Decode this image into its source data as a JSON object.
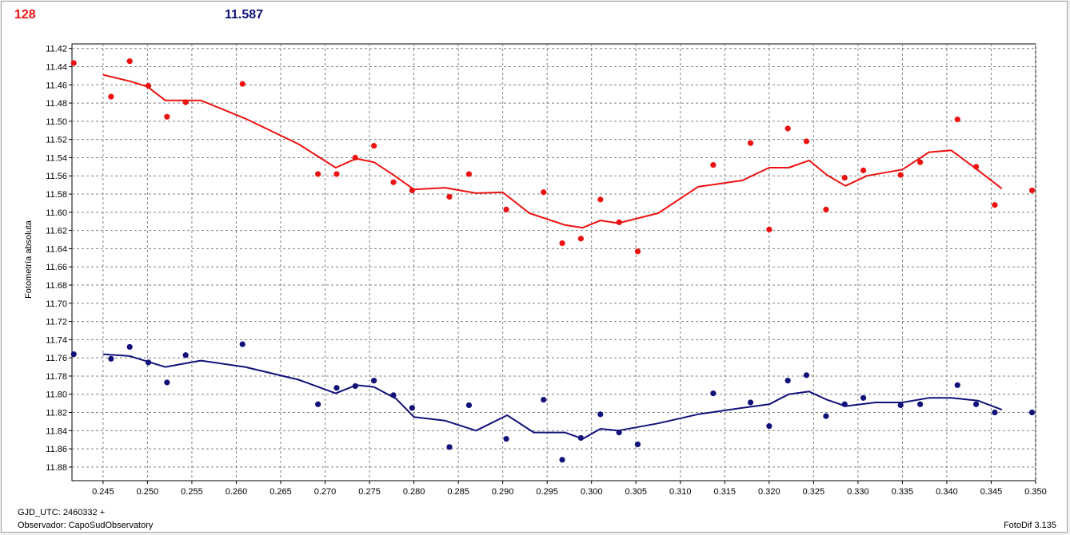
{
  "header": {
    "left_value": "128",
    "right_value": "11.587"
  },
  "footer": {
    "gjd_label": "GJD_UTC: 2460332 +",
    "observer_label": "Observador: CapoSudObservatory",
    "software_label": "FotoDif 3.135"
  },
  "colors": {
    "series_red": "#ee1111",
    "series_blue": "#11117a",
    "grid": "#808080"
  },
  "chart_data": {
    "type": "scatter",
    "ylabel": "Fotometría absoluta",
    "xlim": [
      0.2415,
      0.35
    ],
    "ylim": [
      11.415,
      11.895
    ],
    "y_inverted": true,
    "grid": true,
    "x_ticks": [
      "0.245",
      "0.250",
      "0.255",
      "0.260",
      "0.265",
      "0.270",
      "0.275",
      "0.280",
      "0.285",
      "0.290",
      "0.295",
      "0.300",
      "0.305",
      "0.310",
      "0.315",
      "0.320",
      "0.325",
      "0.330",
      "0.335",
      "0.340",
      "0.345",
      "0.350"
    ],
    "y_ticks": [
      "11.42",
      "11.44",
      "11.46",
      "11.48",
      "11.50",
      "11.52",
      "11.54",
      "11.56",
      "11.58",
      "11.60",
      "11.62",
      "11.64",
      "11.66",
      "11.68",
      "11.70",
      "11.72",
      "11.74",
      "11.76",
      "11.78",
      "11.80",
      "11.82",
      "11.84",
      "11.86",
      "11.88"
    ],
    "series": [
      {
        "color": "#ee1111",
        "points": [
          [
            0.2417,
            11.436
          ],
          [
            0.2459,
            11.473
          ],
          [
            0.248,
            11.434
          ],
          [
            0.2501,
            11.461
          ],
          [
            0.2522,
            11.495
          ],
          [
            0.2543,
            11.479
          ],
          [
            0.2607,
            11.459
          ],
          [
            0.2692,
            11.558
          ],
          [
            0.2713,
            11.558
          ],
          [
            0.2734,
            11.54
          ],
          [
            0.2755,
            11.527
          ],
          [
            0.2777,
            11.567
          ],
          [
            0.2798,
            11.576
          ],
          [
            0.284,
            11.583
          ],
          [
            0.2862,
            11.558
          ],
          [
            0.2904,
            11.597
          ],
          [
            0.2946,
            11.578
          ],
          [
            0.2967,
            11.634
          ],
          [
            0.2988,
            11.629
          ],
          [
            0.301,
            11.586
          ],
          [
            0.3031,
            11.611
          ],
          [
            0.3052,
            11.643
          ],
          [
            0.3137,
            11.548
          ],
          [
            0.3179,
            11.524
          ],
          [
            0.32,
            11.619
          ],
          [
            0.3221,
            11.508
          ],
          [
            0.3242,
            11.522
          ],
          [
            0.3264,
            11.597
          ],
          [
            0.3285,
            11.562
          ],
          [
            0.3306,
            11.554
          ],
          [
            0.3348,
            11.559
          ],
          [
            0.337,
            11.545
          ],
          [
            0.3412,
            11.498
          ],
          [
            0.3433,
            11.55
          ],
          [
            0.3454,
            11.592
          ],
          [
            0.3496,
            11.576
          ]
        ],
        "trend": [
          [
            0.245,
            11.449
          ],
          [
            0.248,
            11.456
          ],
          [
            0.25,
            11.462
          ],
          [
            0.252,
            11.477
          ],
          [
            0.256,
            11.477
          ],
          [
            0.261,
            11.497
          ],
          [
            0.267,
            11.525
          ],
          [
            0.2712,
            11.551
          ],
          [
            0.2735,
            11.541
          ],
          [
            0.2755,
            11.545
          ],
          [
            0.2777,
            11.559
          ],
          [
            0.28,
            11.575
          ],
          [
            0.2835,
            11.573
          ],
          [
            0.287,
            11.579
          ],
          [
            0.29,
            11.578
          ],
          [
            0.293,
            11.601
          ],
          [
            0.297,
            11.614
          ],
          [
            0.299,
            11.617
          ],
          [
            0.301,
            11.609
          ],
          [
            0.303,
            11.612
          ],
          [
            0.3075,
            11.601
          ],
          [
            0.312,
            11.572
          ],
          [
            0.317,
            11.565
          ],
          [
            0.32,
            11.551
          ],
          [
            0.3222,
            11.551
          ],
          [
            0.3245,
            11.543
          ],
          [
            0.3265,
            11.559
          ],
          [
            0.3286,
            11.571
          ],
          [
            0.331,
            11.56
          ],
          [
            0.335,
            11.553
          ],
          [
            0.338,
            11.534
          ],
          [
            0.3405,
            11.532
          ],
          [
            0.343,
            11.55
          ],
          [
            0.3462,
            11.574
          ]
        ]
      },
      {
        "color": "#11117a",
        "points": [
          [
            0.2417,
            11.756
          ],
          [
            0.2459,
            11.761
          ],
          [
            0.248,
            11.748
          ],
          [
            0.2501,
            11.765
          ],
          [
            0.2522,
            11.787
          ],
          [
            0.2543,
            11.757
          ],
          [
            0.2607,
            11.745
          ],
          [
            0.2692,
            11.811
          ],
          [
            0.2713,
            11.793
          ],
          [
            0.2734,
            11.791
          ],
          [
            0.2755,
            11.785
          ],
          [
            0.2777,
            11.801
          ],
          [
            0.2798,
            11.815
          ],
          [
            0.284,
            11.858
          ],
          [
            0.2862,
            11.812
          ],
          [
            0.2904,
            11.849
          ],
          [
            0.2946,
            11.806
          ],
          [
            0.2967,
            11.872
          ],
          [
            0.2988,
            11.848
          ],
          [
            0.301,
            11.822
          ],
          [
            0.3031,
            11.842
          ],
          [
            0.3052,
            11.855
          ],
          [
            0.3137,
            11.799
          ],
          [
            0.3179,
            11.809
          ],
          [
            0.32,
            11.835
          ],
          [
            0.3221,
            11.785
          ],
          [
            0.3242,
            11.779
          ],
          [
            0.3264,
            11.824
          ],
          [
            0.3285,
            11.811
          ],
          [
            0.3306,
            11.804
          ],
          [
            0.3348,
            11.812
          ],
          [
            0.337,
            11.811
          ],
          [
            0.3412,
            11.79
          ],
          [
            0.3433,
            11.811
          ],
          [
            0.3454,
            11.82
          ],
          [
            0.3496,
            11.82
          ]
        ],
        "trend": [
          [
            0.245,
            11.756
          ],
          [
            0.248,
            11.758
          ],
          [
            0.252,
            11.77
          ],
          [
            0.256,
            11.763
          ],
          [
            0.261,
            11.77
          ],
          [
            0.267,
            11.784
          ],
          [
            0.2712,
            11.799
          ],
          [
            0.2735,
            11.79
          ],
          [
            0.2755,
            11.792
          ],
          [
            0.278,
            11.805
          ],
          [
            0.28,
            11.825
          ],
          [
            0.2835,
            11.829
          ],
          [
            0.287,
            11.84
          ],
          [
            0.2905,
            11.823
          ],
          [
            0.2935,
            11.842
          ],
          [
            0.297,
            11.842
          ],
          [
            0.299,
            11.849
          ],
          [
            0.301,
            11.838
          ],
          [
            0.303,
            11.84
          ],
          [
            0.3075,
            11.832
          ],
          [
            0.312,
            11.822
          ],
          [
            0.317,
            11.815
          ],
          [
            0.32,
            11.811
          ],
          [
            0.3222,
            11.8
          ],
          [
            0.3245,
            11.797
          ],
          [
            0.3265,
            11.806
          ],
          [
            0.3286,
            11.813
          ],
          [
            0.332,
            11.809
          ],
          [
            0.335,
            11.809
          ],
          [
            0.338,
            11.804
          ],
          [
            0.3405,
            11.804
          ],
          [
            0.3435,
            11.807
          ],
          [
            0.3462,
            11.817
          ]
        ]
      }
    ]
  }
}
